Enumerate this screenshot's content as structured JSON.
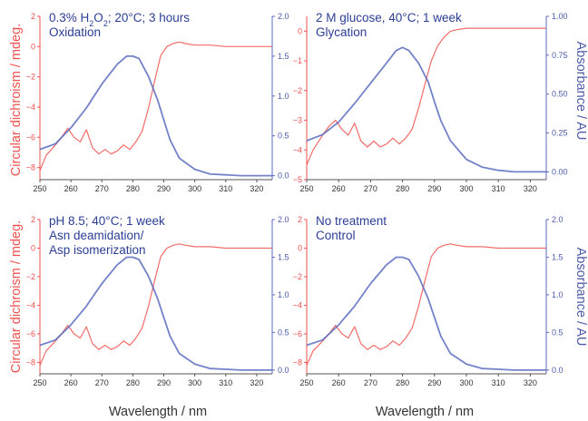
{
  "colors": {
    "cd": "#f0524f",
    "abs": "#5b6cc0",
    "text": "#2c3e94",
    "axis": "#555555"
  },
  "axes": {
    "left_title": "Circular dichroism / mdeg.",
    "right_title": "Absorbance / AU",
    "x_title": "Wavelength / nm"
  },
  "chart_data": [
    {
      "type": "line",
      "annotation_lines": [
        "0.3% H2O2; 20°C; 3 hours",
        "Oxidation"
      ],
      "xlabel": "Wavelength / nm",
      "ylabel": "Circular dichroism / mdeg.",
      "y2label": "Absorbance / AU",
      "xlim": [
        250,
        325
      ],
      "x_ticks": [
        250,
        260,
        270,
        280,
        290,
        300,
        310,
        320
      ],
      "ylim": [
        -8.8,
        2
      ],
      "y_ticks": [
        2,
        0,
        -2,
        -4,
        -6,
        -8
      ],
      "y2lim": [
        -0.05,
        2
      ],
      "y2_ticks": [
        2.0,
        1.5,
        1.0,
        0.5,
        0.0
      ],
      "y2_tick_labels": [
        "2.0",
        "1.5",
        "1.0",
        "0.5",
        "0.0"
      ],
      "series": [
        {
          "axis": "left",
          "color": "#f0524f",
          "x": [
            250,
            252,
            255,
            257,
            259,
            261,
            263,
            265,
            267,
            269,
            271,
            273,
            275,
            277,
            279,
            281,
            283,
            285,
            287,
            289,
            291,
            293,
            295,
            297,
            300,
            305,
            310,
            315,
            320,
            325
          ],
          "y": [
            -8.2,
            -7.2,
            -6.5,
            -6.0,
            -5.4,
            -6.0,
            -6.3,
            -5.5,
            -6.7,
            -7.1,
            -6.8,
            -7.1,
            -6.9,
            -6.5,
            -6.8,
            -6.3,
            -5.6,
            -4.1,
            -2.3,
            -0.6,
            0.0,
            0.2,
            0.3,
            0.2,
            0.1,
            0.1,
            0.0,
            0.0,
            0.0,
            0.0
          ]
        },
        {
          "axis": "right",
          "color": "#5b6cc0",
          "x": [
            250,
            255,
            260,
            265,
            270,
            275,
            278,
            280,
            282,
            285,
            288,
            290,
            292,
            295,
            300,
            305,
            310,
            315,
            320,
            325
          ],
          "y": [
            0.33,
            0.4,
            0.6,
            0.85,
            1.15,
            1.4,
            1.5,
            1.5,
            1.47,
            1.25,
            0.95,
            0.7,
            0.45,
            0.22,
            0.08,
            0.02,
            0.01,
            0.0,
            0.0,
            0.0
          ]
        }
      ]
    },
    {
      "type": "line",
      "annotation_lines": [
        "2 M glucose, 40°C; 1 week",
        "Glycation"
      ],
      "xlabel": "Wavelength / nm",
      "ylabel": "Circular dichroism / mdeg.",
      "y2label": "Absorbance / AU",
      "xlim": [
        250,
        325
      ],
      "x_ticks": [
        250,
        260,
        270,
        280,
        290,
        300,
        310,
        320
      ],
      "ylim": [
        -5,
        0.5
      ],
      "y_ticks": [
        0,
        -1,
        -2,
        -3,
        -4,
        -5
      ],
      "y2lim": [
        -0.05,
        1.0
      ],
      "y2_ticks": [
        1.0,
        0.75,
        0.5,
        0.25,
        0.0
      ],
      "y2_tick_labels": [
        "1.00",
        "0.75",
        "0.50",
        "0.25",
        "0.00"
      ],
      "series": [
        {
          "axis": "left",
          "color": "#f0524f",
          "x": [
            250,
            252,
            255,
            257,
            259,
            261,
            263,
            265,
            267,
            269,
            271,
            273,
            275,
            277,
            279,
            281,
            283,
            285,
            287,
            289,
            291,
            293,
            295,
            297,
            300,
            305,
            310,
            315,
            320,
            325
          ],
          "y": [
            -4.5,
            -4.0,
            -3.5,
            -3.2,
            -3.0,
            -3.3,
            -3.5,
            -3.1,
            -3.7,
            -3.9,
            -3.7,
            -3.9,
            -3.8,
            -3.6,
            -3.8,
            -3.6,
            -3.3,
            -2.6,
            -1.8,
            -1.0,
            -0.5,
            -0.2,
            0.0,
            0.05,
            0.1,
            0.1,
            0.1,
            0.1,
            0.1,
            0.1
          ]
        },
        {
          "axis": "right",
          "color": "#5b6cc0",
          "x": [
            250,
            255,
            260,
            265,
            270,
            275,
            278,
            280,
            282,
            285,
            288,
            290,
            292,
            295,
            300,
            305,
            310,
            315,
            320,
            325
          ],
          "y": [
            0.2,
            0.24,
            0.32,
            0.44,
            0.57,
            0.7,
            0.78,
            0.8,
            0.78,
            0.7,
            0.58,
            0.45,
            0.33,
            0.2,
            0.08,
            0.03,
            0.01,
            0.0,
            0.0,
            0.0
          ]
        }
      ]
    },
    {
      "type": "line",
      "annotation_lines": [
        "pH 8.5; 40°C; 1 week",
        "Asn deamidation/",
        "Asp isomerization"
      ],
      "xlabel": "Wavelength / nm",
      "ylabel": "Circular dichroism / mdeg.",
      "y2label": "Absorbance / AU",
      "xlim": [
        250,
        325
      ],
      "x_ticks": [
        250,
        260,
        270,
        280,
        290,
        300,
        310,
        320
      ],
      "ylim": [
        -8.8,
        2
      ],
      "y_ticks": [
        2,
        0,
        -2,
        -4,
        -6,
        -8
      ],
      "y2lim": [
        -0.05,
        2
      ],
      "y2_ticks": [
        2.0,
        1.5,
        1.0,
        0.5,
        0.0
      ],
      "y2_tick_labels": [
        "2.0",
        "1.5",
        "1.0",
        "0.5",
        "0.0"
      ],
      "series": [
        {
          "axis": "left",
          "color": "#f0524f",
          "x": [
            250,
            252,
            255,
            257,
            259,
            261,
            263,
            265,
            267,
            269,
            271,
            273,
            275,
            277,
            279,
            281,
            283,
            285,
            287,
            289,
            291,
            293,
            295,
            297,
            300,
            305,
            310,
            315,
            320,
            325
          ],
          "y": [
            -8.2,
            -7.2,
            -6.5,
            -6.0,
            -5.4,
            -6.0,
            -6.3,
            -5.5,
            -6.7,
            -7.1,
            -6.8,
            -7.1,
            -6.9,
            -6.5,
            -6.8,
            -6.3,
            -5.6,
            -4.1,
            -2.3,
            -0.6,
            0.0,
            0.2,
            0.3,
            0.2,
            0.1,
            0.1,
            0.0,
            0.0,
            0.0,
            0.0
          ]
        },
        {
          "axis": "right",
          "color": "#5b6cc0",
          "x": [
            250,
            255,
            260,
            265,
            270,
            275,
            278,
            280,
            282,
            285,
            288,
            290,
            292,
            295,
            300,
            305,
            310,
            315,
            320,
            325
          ],
          "y": [
            0.33,
            0.4,
            0.6,
            0.85,
            1.15,
            1.4,
            1.5,
            1.5,
            1.47,
            1.25,
            0.95,
            0.7,
            0.45,
            0.22,
            0.08,
            0.02,
            0.01,
            0.0,
            0.0,
            0.0
          ]
        }
      ]
    },
    {
      "type": "line",
      "annotation_lines": [
        "No treatment",
        "Control"
      ],
      "xlabel": "Wavelength / nm",
      "ylabel": "Circular dichroism / mdeg.",
      "y2label": "Absorbance / AU",
      "xlim": [
        250,
        325
      ],
      "x_ticks": [
        250,
        260,
        270,
        280,
        290,
        300,
        310,
        320
      ],
      "ylim": [
        -8.8,
        2
      ],
      "y_ticks": [
        2,
        0,
        -2,
        -4,
        -6,
        -8
      ],
      "y2lim": [
        -0.05,
        2
      ],
      "y2_ticks": [
        2.0,
        1.5,
        1.0,
        0.5,
        0.0
      ],
      "y2_tick_labels": [
        "2.0",
        "1.5",
        "1.0",
        "0.5",
        "0.0"
      ],
      "series": [
        {
          "axis": "left",
          "color": "#f0524f",
          "x": [
            250,
            252,
            255,
            257,
            259,
            261,
            263,
            265,
            267,
            269,
            271,
            273,
            275,
            277,
            279,
            281,
            283,
            285,
            287,
            289,
            291,
            293,
            295,
            297,
            300,
            305,
            310,
            315,
            320,
            325
          ],
          "y": [
            -8.2,
            -7.2,
            -6.5,
            -6.0,
            -5.4,
            -6.0,
            -6.3,
            -5.5,
            -6.7,
            -7.1,
            -6.8,
            -7.1,
            -6.9,
            -6.5,
            -6.8,
            -6.3,
            -5.6,
            -4.1,
            -2.3,
            -0.6,
            0.0,
            0.2,
            0.3,
            0.2,
            0.1,
            0.1,
            0.0,
            0.0,
            0.0,
            0.0
          ]
        },
        {
          "axis": "right",
          "color": "#5b6cc0",
          "x": [
            250,
            255,
            260,
            265,
            270,
            275,
            278,
            280,
            282,
            285,
            288,
            290,
            292,
            295,
            300,
            305,
            310,
            315,
            320,
            325
          ],
          "y": [
            0.33,
            0.4,
            0.6,
            0.85,
            1.15,
            1.4,
            1.5,
            1.5,
            1.47,
            1.25,
            0.95,
            0.7,
            0.45,
            0.22,
            0.08,
            0.02,
            0.01,
            0.0,
            0.0,
            0.0
          ]
        }
      ]
    }
  ]
}
